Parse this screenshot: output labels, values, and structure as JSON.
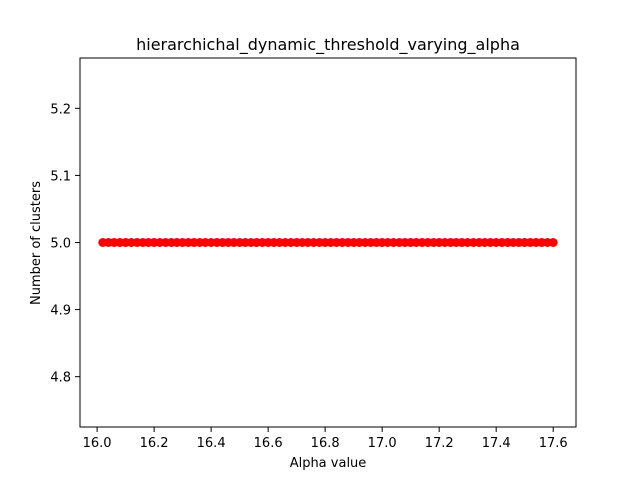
{
  "chart_data": {
    "type": "scatter",
    "title": "hierarchichal_dynamic_threshold_varying_alpha",
    "xlabel": "Alpha value",
    "ylabel": "Number of clusters",
    "xlim": [
      15.94,
      17.68
    ],
    "ylim": [
      4.725,
      5.275
    ],
    "xticks": [
      16.0,
      16.2,
      16.4,
      16.6,
      16.8,
      17.0,
      17.2,
      17.4,
      17.6
    ],
    "xtick_labels": [
      "16.0",
      "16.2",
      "16.4",
      "16.6",
      "16.8",
      "17.0",
      "17.2",
      "17.4",
      "17.6"
    ],
    "yticks": [
      4.8,
      4.9,
      5.0,
      5.1,
      5.2
    ],
    "ytick_labels": [
      "4.8",
      "4.9",
      "5.0",
      "5.1",
      "5.2"
    ],
    "grid": false,
    "marker_color": "#ff0000",
    "series": [
      {
        "x_start": 16.02,
        "x_end": 17.6,
        "x_step": 0.02,
        "y": 5.0
      }
    ]
  }
}
